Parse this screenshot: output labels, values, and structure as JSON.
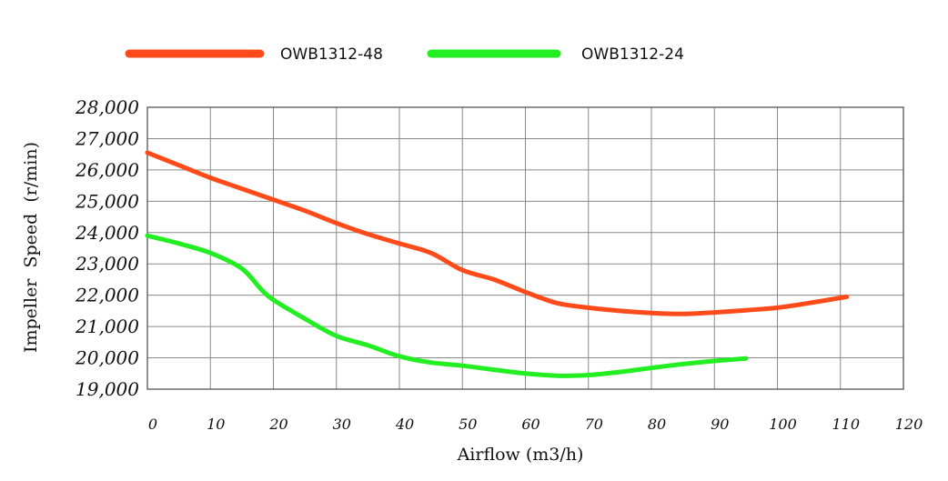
{
  "chart_data": {
    "type": "line",
    "title": "",
    "xlabel": "Airflow (m3/h)",
    "ylabel": "Impeller  Speed  (r/min)",
    "xlim": [
      0,
      120
    ],
    "ylim": [
      19000,
      28000
    ],
    "x_ticks": [
      "0",
      "10",
      "20",
      "30",
      "40",
      "50",
      "60",
      "70",
      "80",
      "90",
      "100",
      "110",
      "120"
    ],
    "y_ticks": [
      "28,000",
      "27,000",
      "26,000",
      "25,000",
      "24,000",
      "23,000",
      "22,000",
      "21,000",
      "20,000",
      "19,000"
    ],
    "grid": true,
    "legend_position": "top",
    "series": [
      {
        "name": "OWB1312-48",
        "color": "#ff4a1a",
        "points": [
          [
            0,
            26550
          ],
          [
            5,
            26150
          ],
          [
            10,
            25750
          ],
          [
            15,
            25400
          ],
          [
            20,
            25050
          ],
          [
            25,
            24700
          ],
          [
            30,
            24300
          ],
          [
            35,
            23950
          ],
          [
            40,
            23650
          ],
          [
            45,
            23350
          ],
          [
            50,
            22800
          ],
          [
            55,
            22500
          ],
          [
            60,
            22100
          ],
          [
            65,
            21750
          ],
          [
            70,
            21600
          ],
          [
            75,
            21500
          ],
          [
            80,
            21430
          ],
          [
            85,
            21400
          ],
          [
            90,
            21450
          ],
          [
            95,
            21520
          ],
          [
            100,
            21600
          ],
          [
            105,
            21750
          ],
          [
            111,
            21950
          ]
        ]
      },
      {
        "name": "OWB1312-24",
        "color": "#22ee22",
        "points": [
          [
            0,
            23900
          ],
          [
            5,
            23650
          ],
          [
            10,
            23350
          ],
          [
            15,
            22850
          ],
          [
            18,
            22200
          ],
          [
            20,
            21850
          ],
          [
            25,
            21250
          ],
          [
            30,
            20700
          ],
          [
            35,
            20400
          ],
          [
            40,
            20050
          ],
          [
            45,
            19850
          ],
          [
            50,
            19750
          ],
          [
            55,
            19620
          ],
          [
            60,
            19500
          ],
          [
            65,
            19430
          ],
          [
            70,
            19450
          ],
          [
            75,
            19550
          ],
          [
            80,
            19680
          ],
          [
            85,
            19800
          ],
          [
            90,
            19900
          ],
          [
            95,
            19980
          ]
        ]
      }
    ]
  }
}
